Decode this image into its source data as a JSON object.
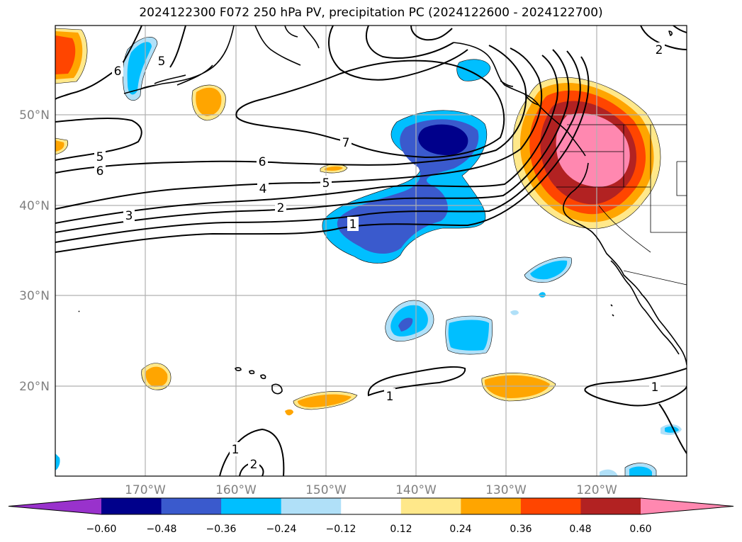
{
  "title": "2024122300 F072 250 hPa PV, precipitation PC (2024122600 - 2024122700)",
  "axes": {
    "lat_labels": [
      "50°N",
      "40°N",
      "30°N",
      "20°N"
    ],
    "lon_labels": [
      "170°W",
      "160°W",
      "150°W",
      "140°W",
      "130°W",
      "120°W"
    ]
  },
  "contour_labels": [
    "6",
    "5",
    "5",
    "6",
    "7",
    "6",
    "5",
    "4",
    "3",
    "2",
    "1",
    "1",
    "1",
    "1",
    "2",
    "2"
  ],
  "colorbar": {
    "ticks": [
      "−0.60",
      "−0.48",
      "−0.36",
      "−0.24",
      "−0.12",
      "0.12",
      "0.24",
      "0.36",
      "0.48",
      "0.60"
    ],
    "colors": [
      "#9932cc",
      "#00008b",
      "#3a5acd",
      "#00bfff",
      "#b0e0f8",
      "#ffffff",
      "#ffe88a",
      "#ffa500",
      "#ff4500",
      "#b22222",
      "#ff88b0"
    ]
  }
}
